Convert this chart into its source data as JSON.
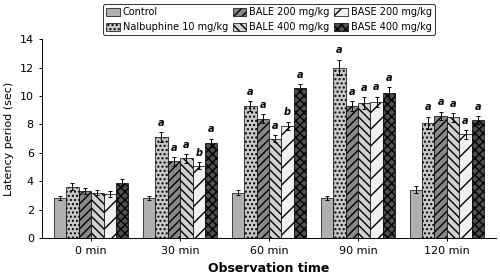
{
  "groups": [
    "0 min",
    "30 min",
    "60 min",
    "90 min",
    "120 min"
  ],
  "series_labels": [
    "Control",
    "Nalbuphine 10 mg/kg",
    "BALE 200 mg/kg",
    "BALE 400 mg/kg",
    "BASE 200 mg/kg",
    "BASE 400 mg/kg"
  ],
  "means": [
    [
      2.8,
      2.8,
      3.2,
      2.8,
      3.4
    ],
    [
      3.6,
      7.1,
      9.3,
      12.0,
      8.1
    ],
    [
      3.3,
      5.4,
      8.4,
      9.3,
      8.6
    ],
    [
      3.2,
      5.6,
      7.0,
      9.5,
      8.5
    ],
    [
      3.1,
      5.1,
      7.9,
      9.6,
      7.3
    ],
    [
      3.9,
      6.7,
      10.55,
      10.2,
      8.3
    ]
  ],
  "sems": [
    [
      0.15,
      0.15,
      0.2,
      0.15,
      0.25
    ],
    [
      0.25,
      0.35,
      0.35,
      0.55,
      0.45
    ],
    [
      0.2,
      0.3,
      0.3,
      0.35,
      0.3
    ],
    [
      0.2,
      0.3,
      0.25,
      0.4,
      0.3
    ],
    [
      0.2,
      0.25,
      0.3,
      0.35,
      0.3
    ],
    [
      0.25,
      0.3,
      0.3,
      0.4,
      0.3
    ]
  ],
  "annotations": [
    [
      null,
      null,
      null,
      null,
      null
    ],
    [
      null,
      "a",
      "a",
      "a",
      "a"
    ],
    [
      null,
      "a",
      "a",
      "a",
      "a"
    ],
    [
      null,
      "a",
      "a",
      "a",
      "a"
    ],
    [
      null,
      "b",
      "b",
      "a",
      "a"
    ],
    [
      null,
      "a",
      "a",
      "a",
      "a"
    ]
  ],
  "ylim": [
    0,
    14
  ],
  "yticks": [
    0,
    2,
    4,
    6,
    8,
    10,
    12,
    14
  ],
  "ylabel": "Latency period (sec)",
  "xlabel": "Observation time",
  "bar_width": 0.14
}
